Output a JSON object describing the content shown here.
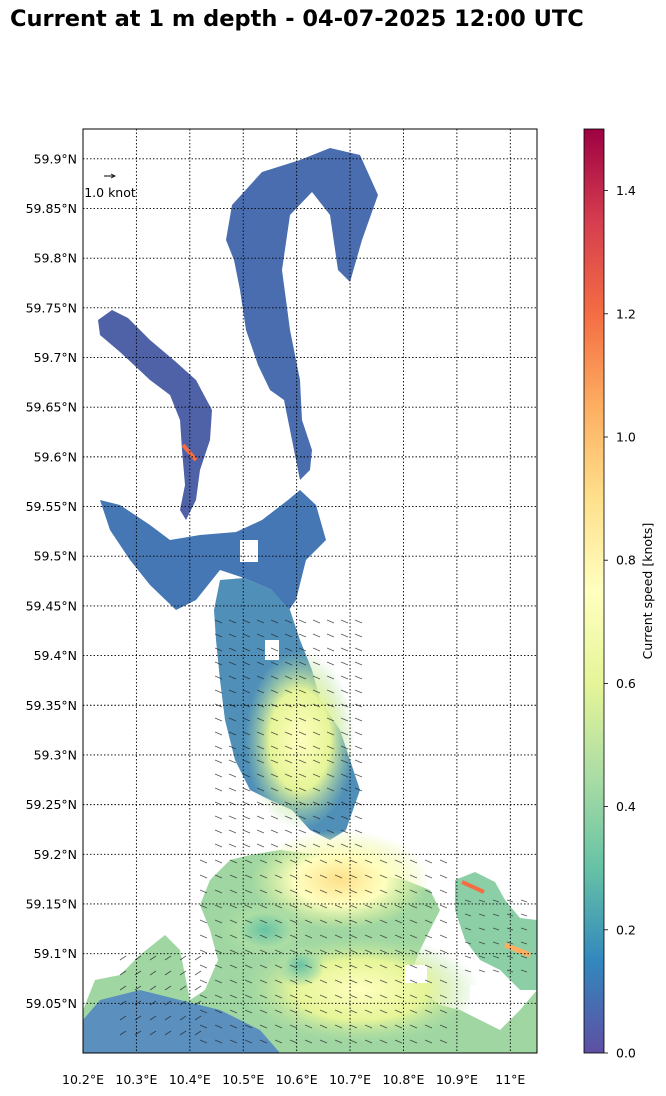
{
  "title": "Current at 1 m depth - 04-07-2025 12:00 UTC",
  "map": {
    "lon_range": [
      10.2,
      11.05
    ],
    "lat_range": [
      59.0,
      59.93
    ],
    "lon_ticks": [
      10.2,
      10.3,
      10.4,
      10.5,
      10.6,
      10.7,
      10.8,
      10.9,
      11.0
    ],
    "lon_tick_labels": [
      "10.2°E",
      "10.3°E",
      "10.4°E",
      "10.5°E",
      "10.6°E",
      "10.7°E",
      "10.8°E",
      "10.9°E",
      "11°E"
    ],
    "lat_ticks": [
      59.05,
      59.1,
      59.15,
      59.2,
      59.25,
      59.3,
      59.35,
      59.4,
      59.45,
      59.5,
      59.55,
      59.6,
      59.65,
      59.7,
      59.75,
      59.8,
      59.85,
      59.9
    ],
    "lat_tick_labels": [
      "59.05°N",
      "59.1°N",
      "59.15°N",
      "59.2°N",
      "59.25°N",
      "59.3°N",
      "59.35°N",
      "59.4°N",
      "59.45°N",
      "59.5°N",
      "59.55°N",
      "59.6°N",
      "59.65°N",
      "59.7°N",
      "59.75°N",
      "59.8°N",
      "59.85°N",
      "59.9°N"
    ],
    "grid": "dotted",
    "quiver_key_label": "1.0 knot"
  },
  "colorbar": {
    "label": "Current speed [knots]",
    "range": [
      0,
      1.5
    ],
    "ticks": [
      0.0,
      0.2,
      0.4,
      0.6,
      0.8,
      1.0,
      1.2,
      1.4
    ],
    "tick_labels": [
      "0.0",
      "0.2",
      "0.4",
      "0.6",
      "0.8",
      "1.0",
      "1.2",
      "1.4"
    ],
    "colormap": "Spectral_r",
    "colors": [
      "#5e4fa2",
      "#3288bd",
      "#66c2a5",
      "#abdda4",
      "#e6f598",
      "#ffffbf",
      "#fee08b",
      "#fdae61",
      "#f46d43",
      "#d53e4f",
      "#9e0142"
    ]
  }
}
